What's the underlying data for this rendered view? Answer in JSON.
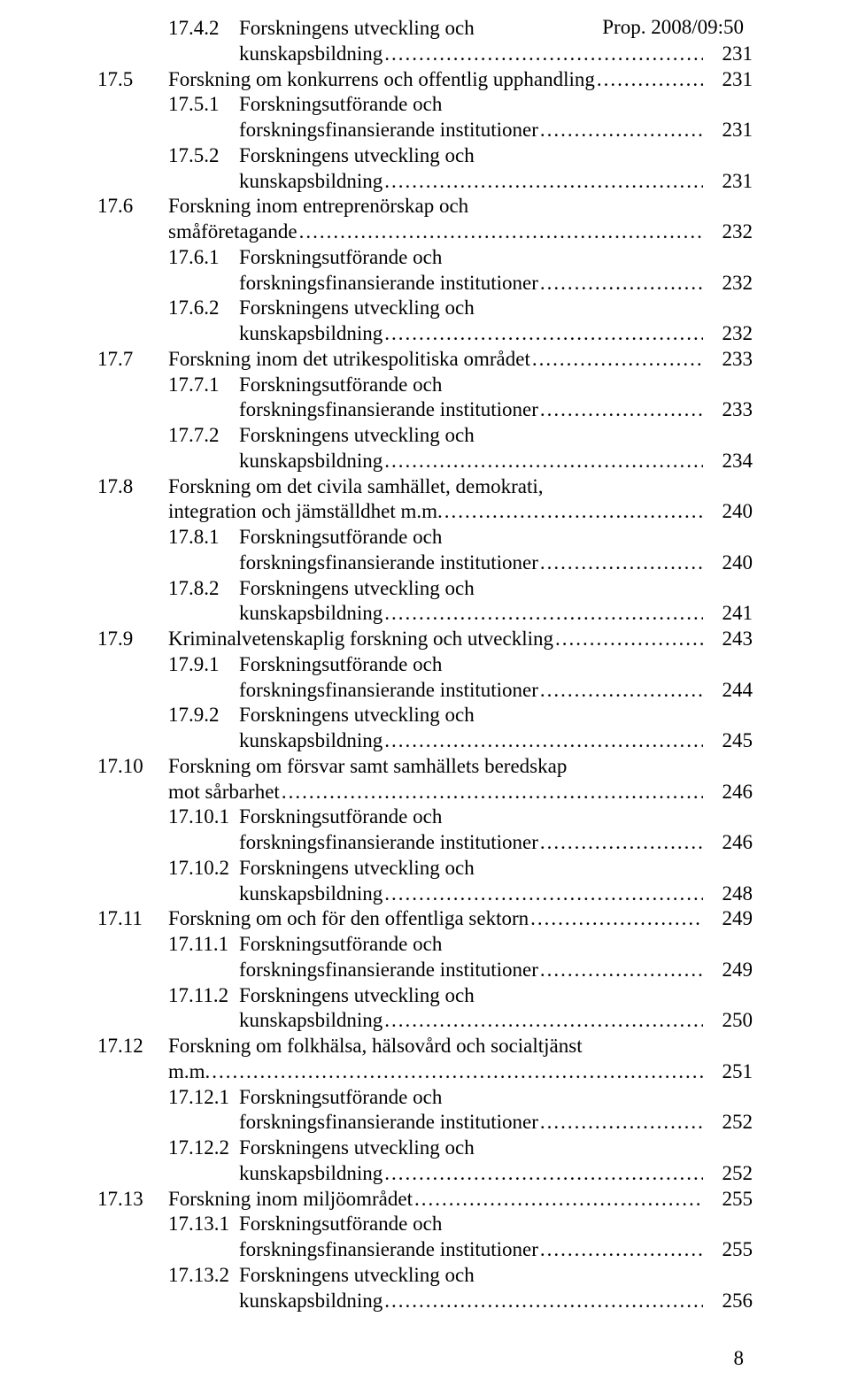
{
  "header": {
    "doc_ref": "Prop. 2008/09:50"
  },
  "footer": {
    "page_number": "8"
  },
  "toc": [
    {
      "level": 2,
      "num": "17.4.2",
      "lines": [
        "Forskningens utveckling och",
        "kunskapsbildning"
      ],
      "page": "231"
    },
    {
      "level": 1,
      "num": "17.5",
      "lines": [
        "Forskning om konkurrens och offentlig upphandling"
      ],
      "page": "231"
    },
    {
      "level": 2,
      "num": "17.5.1",
      "lines": [
        "Forskningsutförande och",
        "forskningsfinansierande institutioner"
      ],
      "page": "231"
    },
    {
      "level": 2,
      "num": "17.5.2",
      "lines": [
        "Forskningens utveckling och",
        "kunskapsbildning"
      ],
      "page": "231"
    },
    {
      "level": 1,
      "num": "17.6",
      "lines": [
        "Forskning inom entreprenörskap och",
        "småföretagande"
      ],
      "page": "232"
    },
    {
      "level": 2,
      "num": "17.6.1",
      "lines": [
        "Forskningsutförande och",
        "forskningsfinansierande institutioner"
      ],
      "page": "232"
    },
    {
      "level": 2,
      "num": "17.6.2",
      "lines": [
        "Forskningens utveckling och",
        "kunskapsbildning"
      ],
      "page": "232"
    },
    {
      "level": 1,
      "num": "17.7",
      "lines": [
        "Forskning inom det utrikespolitiska området"
      ],
      "page": "233"
    },
    {
      "level": 2,
      "num": "17.7.1",
      "lines": [
        "Forskningsutförande och",
        "forskningsfinansierande institutioner"
      ],
      "page": "233"
    },
    {
      "level": 2,
      "num": "17.7.2",
      "lines": [
        "Forskningens utveckling och",
        "kunskapsbildning"
      ],
      "page": "234"
    },
    {
      "level": 1,
      "num": "17.8",
      "lines": [
        "Forskning om det civila samhället, demokrati,",
        "integration och jämställdhet m.m."
      ],
      "page": "240"
    },
    {
      "level": 2,
      "num": "17.8.1",
      "lines": [
        "Forskningsutförande och",
        "forskningsfinansierande institutioner"
      ],
      "page": "240"
    },
    {
      "level": 2,
      "num": "17.8.2",
      "lines": [
        "Forskningens utveckling och",
        "kunskapsbildning"
      ],
      "page": "241"
    },
    {
      "level": 1,
      "num": "17.9",
      "lines": [
        "Kriminalvetenskaplig forskning och utveckling"
      ],
      "page": "243"
    },
    {
      "level": 2,
      "num": "17.9.1",
      "lines": [
        "Forskningsutförande och",
        "forskningsfinansierande institutioner"
      ],
      "page": "244"
    },
    {
      "level": 2,
      "num": "17.9.2",
      "lines": [
        "Forskningens utveckling och",
        "kunskapsbildning"
      ],
      "page": "245"
    },
    {
      "level": 1,
      "num": "17.10",
      "lines": [
        "Forskning om försvar samt samhällets beredskap",
        "mot sårbarhet"
      ],
      "page": "246"
    },
    {
      "level": 2,
      "num": "17.10.1",
      "lines": [
        "Forskningsutförande och",
        "forskningsfinansierande institutioner"
      ],
      "page": "246"
    },
    {
      "level": 2,
      "num": "17.10.2",
      "lines": [
        "Forskningens utveckling och",
        "kunskapsbildning"
      ],
      "page": "248"
    },
    {
      "level": 1,
      "num": "17.11",
      "lines": [
        "Forskning om och för den offentliga sektorn"
      ],
      "page": "249"
    },
    {
      "level": 2,
      "num": "17.11.1",
      "lines": [
        "Forskningsutförande och",
        "forskningsfinansierande institutioner"
      ],
      "page": "249"
    },
    {
      "level": 2,
      "num": "17.11.2",
      "lines": [
        "Forskningens utveckling och",
        "kunskapsbildning"
      ],
      "page": "250"
    },
    {
      "level": 1,
      "num": "17.12",
      "lines": [
        "Forskning om folkhälsa, hälsovård och socialtjänst",
        "m.m."
      ],
      "page": "251"
    },
    {
      "level": 2,
      "num": "17.12.1",
      "lines": [
        "Forskningsutförande och",
        "forskningsfinansierande institutioner"
      ],
      "page": "252"
    },
    {
      "level": 2,
      "num": "17.12.2",
      "lines": [
        "Forskningens utveckling och",
        "kunskapsbildning"
      ],
      "page": "252"
    },
    {
      "level": 1,
      "num": "17.13",
      "lines": [
        "Forskning inom miljöområdet"
      ],
      "page": "255"
    },
    {
      "level": 2,
      "num": "17.13.1",
      "lines": [
        "Forskningsutförande och",
        "forskningsfinansierande institutioner"
      ],
      "page": "255"
    },
    {
      "level": 2,
      "num": "17.13.2",
      "lines": [
        "Forskningens utveckling och",
        "kunskapsbildning"
      ],
      "page": "256"
    }
  ]
}
